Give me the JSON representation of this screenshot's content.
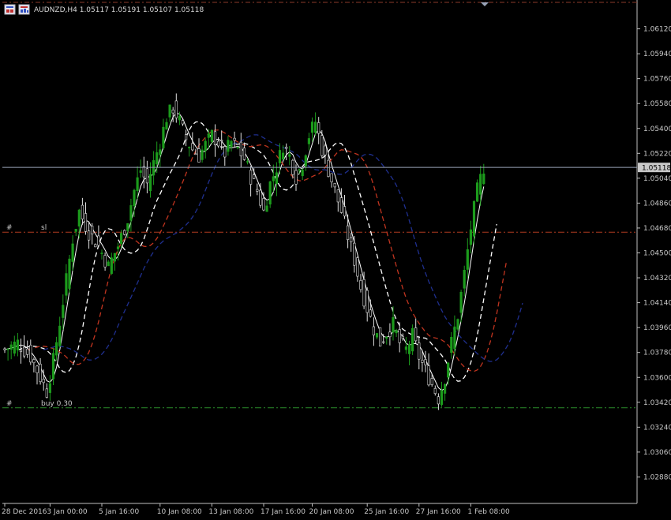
{
  "header": {
    "symbol_line": "AUDNZD,H4  1.05117 1.05191 1.05107 1.05118"
  },
  "icons": [
    "chart-window-icon",
    "chart-properties-icon"
  ],
  "colors": {
    "background": "#000000",
    "axis": "#c0c0c0",
    "bull": "#1c9b1c",
    "bear": "#e0e0e0",
    "ma_fast": "#ffffff",
    "ma_mid": "#c0341f",
    "ma_slow": "#1f2f8f",
    "sl_line": "#b03a20",
    "buy_line": "#2b8a2b",
    "bid_line": "#9aa4b8",
    "top_line": "#8a3a2a"
  },
  "price_line": {
    "value": 1.05118,
    "label": "1.05118"
  },
  "levels": [
    {
      "name": "sl",
      "marker": "#",
      "label": "sl",
      "price": 1.0465,
      "color_key": "sl_line"
    },
    {
      "name": "buy",
      "marker": "#",
      "label": "buy 0.30",
      "price": 1.0338,
      "color_key": "buy_line"
    }
  ],
  "chart_data": {
    "type": "candlestick",
    "symbol": "AUDNZD",
    "timeframe": "H4",
    "ylim": [
      1.027,
      1.063
    ],
    "y_ticks": [
      "1.06120",
      "1.05940",
      "1.05760",
      "1.05580",
      "1.05400",
      "1.05220",
      "1.05040",
      "1.04860",
      "1.04680",
      "1.04500",
      "1.04320",
      "1.04140",
      "1.03960",
      "1.03780",
      "1.03600",
      "1.03420",
      "1.03240",
      "1.03060",
      "1.02880"
    ],
    "x_ticks": [
      {
        "label": "28 Dec 2016",
        "bar": 0
      },
      {
        "label": "3 Jan 00:00",
        "bar": 14
      },
      {
        "label": "5 Jan 16:00",
        "bar": 30
      },
      {
        "label": "10 Jan 08:00",
        "bar": 48
      },
      {
        "label": "13 Jan 08:00",
        "bar": 64
      },
      {
        "label": "17 Jan 16:00",
        "bar": 80
      },
      {
        "label": "20 Jan 08:00",
        "bar": 95
      },
      {
        "label": "25 Jan 16:00",
        "bar": 112
      },
      {
        "label": "27 Jan 16:00",
        "bar": 128
      },
      {
        "label": "1 Feb 08:00",
        "bar": 144
      }
    ],
    "close_path": [
      [
        0,
        1.038
      ],
      [
        4,
        1.0385
      ],
      [
        8,
        1.0375
      ],
      [
        11,
        1.036
      ],
      [
        13,
        1.035
      ],
      [
        15,
        1.0372
      ],
      [
        17,
        1.04
      ],
      [
        19,
        1.043
      ],
      [
        21,
        1.046
      ],
      [
        23,
        1.048
      ],
      [
        26,
        1.0465
      ],
      [
        29,
        1.0455
      ],
      [
        32,
        1.044
      ],
      [
        35,
        1.0455
      ],
      [
        38,
        1.0475
      ],
      [
        40,
        1.0495
      ],
      [
        42,
        1.051
      ],
      [
        44,
        1.05
      ],
      [
        46,
        1.0515
      ],
      [
        48,
        1.053
      ],
      [
        50,
        1.0548
      ],
      [
        52,
        1.0555
      ],
      [
        54,
        1.0545
      ],
      [
        56,
        1.0532
      ],
      [
        58,
        1.0525
      ],
      [
        60,
        1.052
      ],
      [
        62,
        1.0528
      ],
      [
        64,
        1.0535
      ],
      [
        66,
        1.053
      ],
      [
        68,
        1.0522
      ],
      [
        70,
        1.053
      ],
      [
        72,
        1.0525
      ],
      [
        74,
        1.0518
      ],
      [
        76,
        1.0505
      ],
      [
        78,
        1.0495
      ],
      [
        80,
        1.048
      ],
      [
        82,
        1.05
      ],
      [
        84,
        1.0512
      ],
      [
        86,
        1.0528
      ],
      [
        88,
        1.052
      ],
      [
        90,
        1.0505
      ],
      [
        92,
        1.0515
      ],
      [
        94,
        1.0535
      ],
      [
        96,
        1.0545
      ],
      [
        98,
        1.0525
      ],
      [
        100,
        1.051
      ],
      [
        102,
        1.0495
      ],
      [
        104,
        1.048
      ],
      [
        106,
        1.0462
      ],
      [
        108,
        1.0445
      ],
      [
        110,
        1.0425
      ],
      [
        112,
        1.041
      ],
      [
        114,
        1.0395
      ],
      [
        116,
        1.0385
      ],
      [
        118,
        1.0392
      ],
      [
        120,
        1.0398
      ],
      [
        122,
        1.0385
      ],
      [
        124,
        1.038
      ],
      [
        126,
        1.039
      ],
      [
        128,
        1.0375
      ],
      [
        130,
        1.0365
      ],
      [
        132,
        1.0355
      ],
      [
        134,
        1.0345
      ],
      [
        136,
        1.036
      ],
      [
        138,
        1.0385
      ],
      [
        140,
        1.0405
      ],
      [
        142,
        1.0435
      ],
      [
        144,
        1.0468
      ],
      [
        146,
        1.0495
      ],
      [
        148,
        1.0512
      ]
    ],
    "overlays": [
      {
        "color_key": "ma_fast",
        "style": "solid",
        "offset": 0,
        "smooth": 4
      },
      {
        "color_key": "ma_fast",
        "style": "dashed",
        "offset": 4,
        "smooth": 8
      },
      {
        "color_key": "ma_mid",
        "style": "dashed",
        "offset": 7,
        "smooth": 12
      },
      {
        "color_key": "ma_slow",
        "style": "dashed",
        "offset": 12,
        "smooth": 18
      }
    ],
    "grid": false
  }
}
